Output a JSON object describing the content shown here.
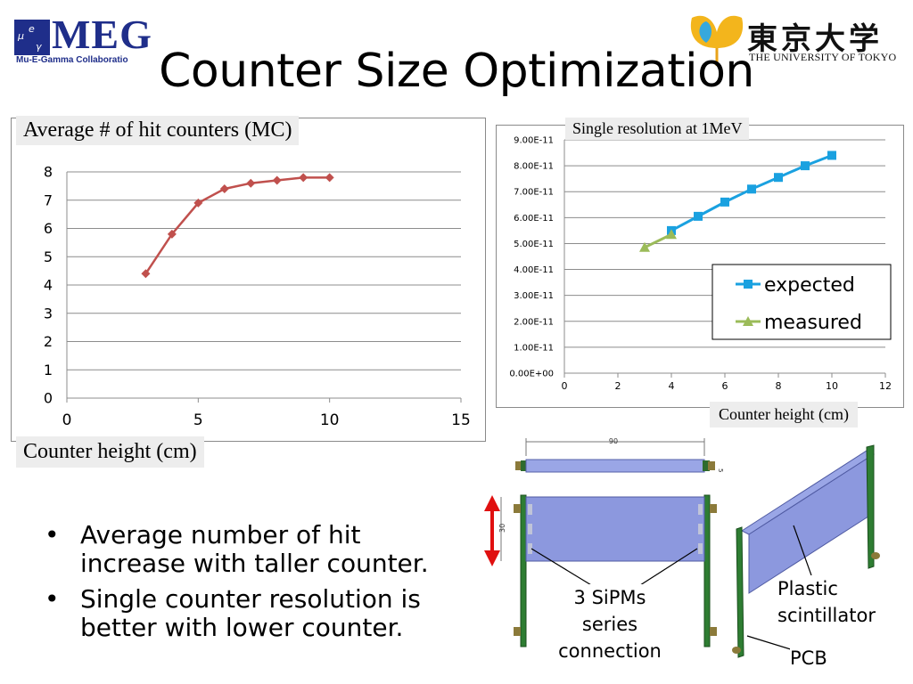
{
  "header": {
    "title": "Counter Size Optimization",
    "meg_logo_text": "MEG",
    "meg_logo_subtitle": "Mu-E-Gamma Collaboratio",
    "ut_logo_jp": "東京大学",
    "ut_logo_en": "THE UNIVERSITY OF TOKYO"
  },
  "chart_data": [
    {
      "type": "line",
      "title": "Average # of hit counters (MC)",
      "xlabel": "Counter height (cm)",
      "ylabel": "",
      "xlim": [
        0,
        15
      ],
      "ylim": [
        0,
        8
      ],
      "x_ticks": [
        "0",
        "5",
        "10",
        "15"
      ],
      "y_ticks": [
        "0",
        "1",
        "2",
        "3",
        "4",
        "5",
        "6",
        "7",
        "8"
      ],
      "grid": true,
      "color": "#c0504d",
      "series": [
        {
          "x": [
            3,
            4,
            5,
            6,
            7,
            8,
            9,
            10
          ],
          "values": [
            4.4,
            5.8,
            6.9,
            7.4,
            7.6,
            7.7,
            7.8,
            7.8
          ]
        }
      ]
    },
    {
      "type": "line",
      "title": "Single resolution at 1MeV",
      "xlabel": "Counter height (cm)",
      "ylabel": "",
      "xlim": [
        0,
        12
      ],
      "ylim": [
        0,
        9e-11
      ],
      "x_ticks": [
        "0",
        "2",
        "4",
        "6",
        "8",
        "10",
        "12"
      ],
      "y_ticks": [
        "0.00E+00",
        "1.00E-11",
        "2.00E-11",
        "3.00E-11",
        "4.00E-11",
        "5.00E-11",
        "6.00E-11",
        "7.00E-11",
        "8.00E-11",
        "9.00E-11"
      ],
      "grid": true,
      "legend": "right",
      "series": [
        {
          "name": "expected",
          "color": "#1aa1e0",
          "marker": "square",
          "x": [
            4,
            5,
            6,
            7,
            8,
            9,
            10
          ],
          "values": [
            5.5e-11,
            6.05e-11,
            6.6e-11,
            7.1e-11,
            7.55e-11,
            8e-11,
            8.4e-11
          ]
        },
        {
          "name": "measured",
          "color": "#9bbb59",
          "marker": "triangle",
          "x": [
            3,
            4
          ],
          "values": [
            4.85e-11,
            5.35e-11
          ]
        }
      ]
    }
  ],
  "bullets": [
    "Average number of hit increase with taller counter.",
    "Single counter resolution is better with lower counter."
  ],
  "bullet_glyph": "•",
  "diagram": {
    "dim_top": "90",
    "dim_side": "5",
    "dim_height": "30",
    "label_sipm_1": "3 SiPMs",
    "label_sipm_2": "series",
    "label_sipm_3": "connection",
    "label_plastic_1": "Plastic",
    "label_plastic_2": "scintillator",
    "label_pcb": "PCB"
  }
}
